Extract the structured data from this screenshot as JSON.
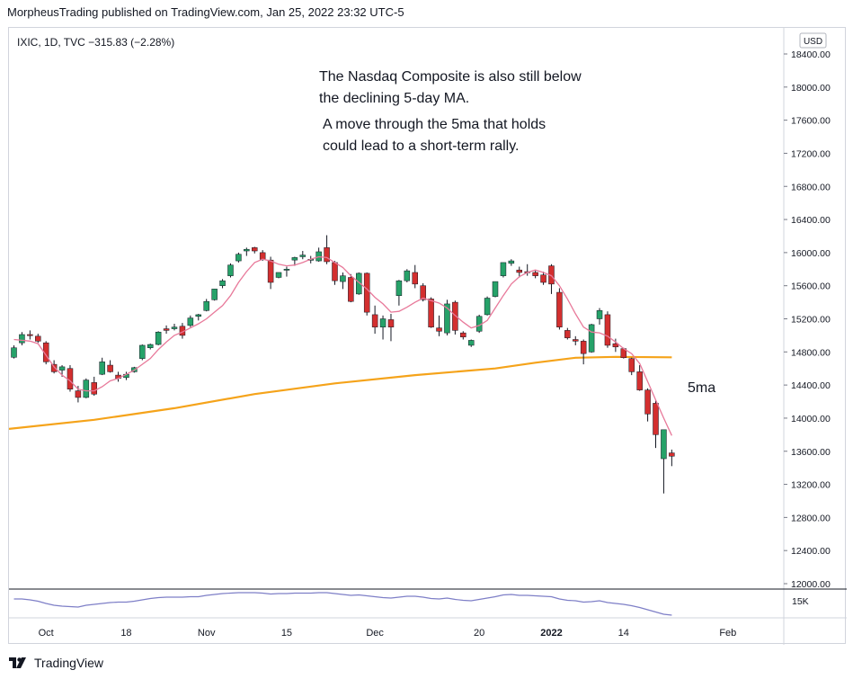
{
  "header": {
    "text": "MorpheusTrading published on TradingView.com, Jan 25, 2022 23:32 UTC-5"
  },
  "symbol_info": {
    "text": "IXIC, 1D, TVC  −315.83 (−2.28%)"
  },
  "currency_badge": "USD",
  "annotations": {
    "line1": "The Nasdaq Composite is also still below",
    "line2": "the declining 5-day MA.",
    "line3": "A move through the 5ma that holds",
    "line4": "could lead to a short-term rally.",
    "ma_label": "5ma"
  },
  "footer": {
    "brand": "TradingView"
  },
  "colors": {
    "up": "#26a269",
    "down": "#d32f2f",
    "ma5": "#e8799a",
    "ma200": "#f5a31a",
    "rsi": "#7e7fc7",
    "grid": "#d1d4dc"
  },
  "chart_data": {
    "type": "candlestick",
    "y_ticks": [
      "18400.00",
      "18000.00",
      "17600.00",
      "17200.00",
      "16800.00",
      "16400.00",
      "16000.00",
      "15600.00",
      "15200.00",
      "14800.00",
      "14400.00",
      "14000.00",
      "13600.00",
      "13200.00",
      "12800.00",
      "12400.00",
      "12000.00"
    ],
    "ylim": [
      12000,
      18400
    ],
    "x_ticks": [
      {
        "label": "Oct",
        "idx": 4
      },
      {
        "label": "18",
        "idx": 14
      },
      {
        "label": "Nov",
        "idx": 24
      },
      {
        "label": "15",
        "idx": 34
      },
      {
        "label": "Dec",
        "idx": 45
      },
      {
        "label": "20",
        "idx": 58
      },
      {
        "label": "2022",
        "idx": 67
      },
      {
        "label": "14",
        "idx": 76
      },
      {
        "label": "Feb",
        "idx": 89
      }
    ],
    "candles": [
      [
        14735,
        14880,
        14720,
        14850
      ],
      [
        14910,
        15040,
        14880,
        15010
      ],
      [
        15010,
        15060,
        14950,
        15000
      ],
      [
        14990,
        15020,
        14910,
        14930
      ],
      [
        14910,
        14930,
        14650,
        14680
      ],
      [
        14650,
        14700,
        14540,
        14560
      ],
      [
        14580,
        14640,
        14500,
        14620
      ],
      [
        14600,
        14640,
        14320,
        14350
      ],
      [
        14330,
        14390,
        14190,
        14250
      ],
      [
        14250,
        14480,
        14240,
        14460
      ],
      [
        14430,
        14500,
        14270,
        14290
      ],
      [
        14530,
        14730,
        14520,
        14680
      ],
      [
        14640,
        14700,
        14550,
        14560
      ],
      [
        14520,
        14560,
        14440,
        14480
      ],
      [
        14490,
        14560,
        14460,
        14530
      ],
      [
        14560,
        14620,
        14550,
        14610
      ],
      [
        14720,
        14890,
        14700,
        14880
      ],
      [
        14850,
        14900,
        14830,
        14890
      ],
      [
        14890,
        15050,
        14880,
        15040
      ],
      [
        15080,
        15120,
        15020,
        15060
      ],
      [
        15080,
        15140,
        15060,
        15100
      ],
      [
        15110,
        15150,
        14960,
        15000
      ],
      [
        15120,
        15240,
        15100,
        15210
      ],
      [
        15230,
        15260,
        15180,
        15250
      ],
      [
        15300,
        15440,
        15290,
        15410
      ],
      [
        15430,
        15560,
        15420,
        15560
      ],
      [
        15600,
        15680,
        15570,
        15660
      ],
      [
        15720,
        15870,
        15700,
        15850
      ],
      [
        15900,
        16000,
        15880,
        15980
      ],
      [
        16020,
        16060,
        15960,
        16040
      ],
      [
        16060,
        16070,
        15990,
        16020
      ],
      [
        16000,
        16030,
        15900,
        15920
      ],
      [
        15910,
        15950,
        15560,
        15640
      ],
      [
        15700,
        15760,
        15690,
        15760
      ],
      [
        15800,
        15830,
        15710,
        15800
      ],
      [
        15910,
        15950,
        15840,
        15940
      ],
      [
        15950,
        16020,
        15920,
        15970
      ],
      [
        15920,
        15960,
        15870,
        15920
      ],
      [
        15900,
        16060,
        15890,
        16010
      ],
      [
        16060,
        16210,
        15860,
        15890
      ],
      [
        15880,
        15900,
        15610,
        15660
      ],
      [
        15650,
        15760,
        15560,
        15720
      ],
      [
        15700,
        15740,
        15400,
        15410
      ],
      [
        15500,
        15760,
        15490,
        15750
      ],
      [
        15750,
        15760,
        15240,
        15280
      ],
      [
        15250,
        15360,
        15020,
        15100
      ],
      [
        15100,
        15240,
        14950,
        15200
      ],
      [
        15190,
        15260,
        14930,
        15100
      ],
      [
        15480,
        15670,
        15360,
        15660
      ],
      [
        15660,
        15800,
        15640,
        15780
      ],
      [
        15760,
        15850,
        15570,
        15620
      ],
      [
        15600,
        15630,
        15410,
        15430
      ],
      [
        15440,
        15460,
        15090,
        15100
      ],
      [
        15090,
        15240,
        14990,
        15050
      ],
      [
        15030,
        15430,
        15000,
        15380
      ],
      [
        15400,
        15420,
        15010,
        15060
      ],
      [
        15030,
        15050,
        14950,
        14980
      ],
      [
        14880,
        14950,
        14860,
        14940
      ],
      [
        15050,
        15250,
        15030,
        15230
      ],
      [
        15250,
        15470,
        15240,
        15450
      ],
      [
        15470,
        15650,
        15460,
        15650
      ],
      [
        15720,
        15880,
        15700,
        15880
      ],
      [
        15870,
        15920,
        15840,
        15900
      ],
      [
        15790,
        15830,
        15700,
        15760
      ],
      [
        15770,
        15860,
        15720,
        15760
      ],
      [
        15760,
        15780,
        15690,
        15720
      ],
      [
        15730,
        15770,
        15610,
        15640
      ],
      [
        15840,
        15860,
        15500,
        15620
      ],
      [
        15520,
        15570,
        15070,
        15100
      ],
      [
        15060,
        15090,
        14950,
        14970
      ],
      [
        14950,
        14990,
        14880,
        14930
      ],
      [
        14930,
        14950,
        14650,
        14780
      ],
      [
        14800,
        15140,
        14790,
        15130
      ],
      [
        15200,
        15330,
        15130,
        15300
      ],
      [
        15250,
        15290,
        14850,
        14880
      ],
      [
        14900,
        14960,
        14800,
        14860
      ],
      [
        14840,
        14850,
        14720,
        14730
      ],
      [
        14720,
        14730,
        14520,
        14560
      ],
      [
        14560,
        14640,
        14330,
        14340
      ],
      [
        14340,
        14360,
        13960,
        14050
      ],
      [
        14180,
        14220,
        13640,
        13800
      ],
      [
        13510,
        13840,
        13090,
        13860
      ],
      [
        13580,
        13620,
        13420,
        13540
      ]
    ],
    "ma5": [
      [
        0,
        14950
      ],
      [
        1,
        14940
      ],
      [
        2,
        14930
      ],
      [
        3,
        14900
      ],
      [
        4,
        14760
      ],
      [
        5,
        14620
      ],
      [
        6,
        14520
      ],
      [
        7,
        14450
      ],
      [
        8,
        14350
      ],
      [
        9,
        14330
      ],
      [
        10,
        14330
      ],
      [
        11,
        14380
      ],
      [
        12,
        14450
      ],
      [
        13,
        14480
      ],
      [
        14,
        14530
      ],
      [
        15,
        14580
      ],
      [
        16,
        14650
      ],
      [
        17,
        14720
      ],
      [
        18,
        14830
      ],
      [
        19,
        14920
      ],
      [
        20,
        15000
      ],
      [
        21,
        15040
      ],
      [
        22,
        15090
      ],
      [
        23,
        15140
      ],
      [
        24,
        15200
      ],
      [
        25,
        15280
      ],
      [
        26,
        15360
      ],
      [
        27,
        15480
      ],
      [
        28,
        15640
      ],
      [
        29,
        15770
      ],
      [
        30,
        15880
      ],
      [
        31,
        15920
      ],
      [
        32,
        15900
      ],
      [
        33,
        15860
      ],
      [
        34,
        15840
      ],
      [
        35,
        15850
      ],
      [
        36,
        15880
      ],
      [
        37,
        15920
      ],
      [
        38,
        15950
      ],
      [
        39,
        15940
      ],
      [
        40,
        15880
      ],
      [
        41,
        15820
      ],
      [
        42,
        15720
      ],
      [
        43,
        15640
      ],
      [
        44,
        15560
      ],
      [
        45,
        15460
      ],
      [
        46,
        15380
      ],
      [
        47,
        15280
      ],
      [
        48,
        15290
      ],
      [
        49,
        15340
      ],
      [
        50,
        15400
      ],
      [
        51,
        15450
      ],
      [
        52,
        15420
      ],
      [
        53,
        15390
      ],
      [
        54,
        15330
      ],
      [
        55,
        15240
      ],
      [
        56,
        15160
      ],
      [
        57,
        15090
      ],
      [
        58,
        15120
      ],
      [
        59,
        15180
      ],
      [
        60,
        15330
      ],
      [
        61,
        15480
      ],
      [
        62,
        15620
      ],
      [
        63,
        15710
      ],
      [
        64,
        15760
      ],
      [
        65,
        15790
      ],
      [
        66,
        15760
      ],
      [
        67,
        15720
      ],
      [
        68,
        15600
      ],
      [
        69,
        15440
      ],
      [
        70,
        15260
      ],
      [
        71,
        15100
      ],
      [
        72,
        15040
      ],
      [
        73,
        15030
      ],
      [
        74,
        14990
      ],
      [
        75,
        14920
      ],
      [
        76,
        14840
      ],
      [
        77,
        14780
      ],
      [
        78,
        14660
      ],
      [
        79,
        14440
      ],
      [
        80,
        14220
      ],
      [
        81,
        14000
      ],
      [
        82,
        13790
      ]
    ],
    "ma200": [
      [
        -1,
        13870
      ],
      [
        10,
        13980
      ],
      [
        20,
        14120
      ],
      [
        30,
        14290
      ],
      [
        40,
        14420
      ],
      [
        50,
        14520
      ],
      [
        60,
        14600
      ],
      [
        65,
        14670
      ],
      [
        70,
        14730
      ],
      [
        75,
        14740
      ],
      [
        82,
        14735
      ]
    ],
    "rsi": [
      62,
      62,
      60,
      57,
      52,
      48,
      46,
      45,
      44,
      48,
      50,
      52,
      54,
      55,
      55,
      57,
      60,
      63,
      65,
      66,
      66,
      66,
      67,
      67,
      70,
      72,
      74,
      75,
      76,
      76,
      76,
      75,
      73,
      74,
      74,
      75,
      75,
      75,
      76,
      76,
      74,
      72,
      70,
      71,
      69,
      67,
      65,
      64,
      66,
      68,
      68,
      66,
      63,
      62,
      64,
      61,
      59,
      58,
      61,
      64,
      67,
      71,
      72,
      70,
      70,
      69,
      68,
      67,
      62,
      59,
      58,
      55,
      56,
      58,
      54,
      52,
      50,
      47,
      43,
      38,
      33,
      28,
      26
    ]
  }
}
